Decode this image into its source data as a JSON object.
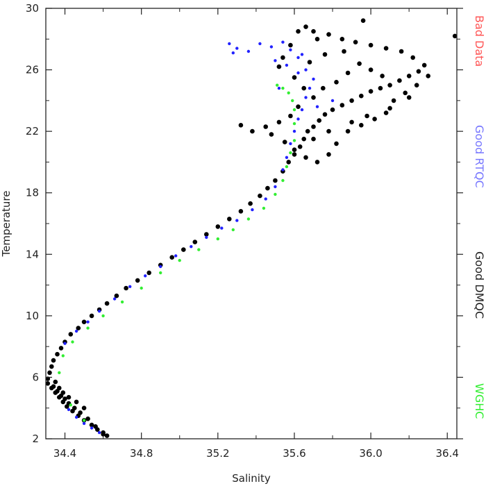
{
  "chart_data": {
    "type": "scatter",
    "xlabel": "Salinity",
    "ylabel": "Temperature",
    "xlim": [
      34.3,
      36.45
    ],
    "ylim": [
      2,
      30
    ],
    "xticks": [
      34.4,
      34.8,
      35.2,
      35.6,
      36.0,
      36.4
    ],
    "xtick_labels": [
      "34.4",
      "34.8",
      "35.2",
      "35.6",
      "36.0",
      "36.4"
    ],
    "yticks": [
      2,
      6,
      10,
      14,
      18,
      22,
      26,
      30
    ],
    "ytick_labels": [
      "2",
      "6",
      "10",
      "14",
      "18",
      "22",
      "26",
      "30"
    ],
    "grid": false,
    "legend_position": "right-vertical",
    "series": [
      {
        "name": "Good DMQC",
        "color": "#000000",
        "points": [
          [
            34.62,
            2.2
          ],
          [
            34.6,
            2.4
          ],
          [
            34.57,
            2.6
          ],
          [
            34.54,
            2.9
          ],
          [
            34.5,
            3.2
          ],
          [
            34.47,
            3.5
          ],
          [
            34.44,
            3.8
          ],
          [
            34.41,
            4.1
          ],
          [
            34.39,
            4.4
          ],
          [
            34.37,
            4.7
          ],
          [
            34.35,
            5.0
          ],
          [
            34.33,
            5.3
          ],
          [
            34.31,
            5.6
          ],
          [
            34.31,
            5.9
          ],
          [
            34.32,
            6.3
          ],
          [
            34.33,
            6.7
          ],
          [
            34.34,
            7.1
          ],
          [
            34.36,
            7.5
          ],
          [
            34.38,
            7.9
          ],
          [
            34.4,
            8.3
          ],
          [
            34.43,
            8.8
          ],
          [
            34.47,
            9.2
          ],
          [
            34.5,
            9.6
          ],
          [
            34.54,
            10.0
          ],
          [
            34.58,
            10.4
          ],
          [
            34.62,
            10.8
          ],
          [
            34.67,
            11.3
          ],
          [
            34.72,
            11.8
          ],
          [
            34.78,
            12.3
          ],
          [
            34.84,
            12.8
          ],
          [
            34.9,
            13.3
          ],
          [
            34.96,
            13.8
          ],
          [
            35.02,
            14.3
          ],
          [
            35.08,
            14.8
          ],
          [
            35.14,
            15.3
          ],
          [
            35.2,
            15.8
          ],
          [
            35.26,
            16.3
          ],
          [
            35.32,
            16.8
          ],
          [
            35.37,
            17.3
          ],
          [
            35.42,
            17.8
          ],
          [
            35.46,
            18.3
          ],
          [
            35.5,
            18.8
          ],
          [
            35.54,
            19.4
          ],
          [
            35.57,
            20.0
          ],
          [
            35.6,
            20.5
          ],
          [
            35.63,
            21.0
          ],
          [
            35.65,
            21.5
          ],
          [
            35.67,
            22.0
          ],
          [
            35.7,
            22.3
          ],
          [
            35.73,
            22.7
          ],
          [
            35.76,
            23.1
          ],
          [
            35.8,
            23.4
          ],
          [
            35.85,
            23.7
          ],
          [
            35.9,
            24.0
          ],
          [
            35.95,
            24.3
          ],
          [
            36.0,
            24.6
          ],
          [
            36.05,
            24.8
          ],
          [
            36.1,
            25.0
          ],
          [
            36.15,
            25.3
          ],
          [
            36.2,
            25.6
          ],
          [
            36.25,
            25.9
          ],
          [
            36.28,
            26.3
          ],
          [
            36.22,
            26.8
          ],
          [
            36.16,
            27.2
          ],
          [
            36.08,
            27.4
          ],
          [
            36.0,
            27.6
          ],
          [
            35.92,
            27.8
          ],
          [
            35.85,
            28.0
          ],
          [
            35.78,
            28.3
          ],
          [
            35.7,
            28.5
          ],
          [
            35.66,
            28.8
          ],
          [
            35.62,
            28.5
          ],
          [
            35.58,
            27.6
          ],
          [
            35.54,
            26.8
          ],
          [
            35.52,
            26.2
          ],
          [
            35.6,
            25.5
          ],
          [
            35.65,
            24.8
          ],
          [
            35.7,
            24.2
          ],
          [
            35.62,
            23.6
          ],
          [
            35.58,
            23.0
          ],
          [
            35.52,
            22.6
          ],
          [
            35.45,
            22.3
          ],
          [
            35.38,
            22.0
          ],
          [
            35.32,
            22.4
          ],
          [
            35.48,
            21.8
          ],
          [
            35.55,
            21.3
          ],
          [
            35.6,
            20.8
          ],
          [
            35.66,
            20.3
          ],
          [
            35.72,
            20.0
          ],
          [
            35.78,
            20.5
          ],
          [
            35.82,
            21.2
          ],
          [
            35.88,
            22.0
          ],
          [
            35.95,
            22.4
          ],
          [
            36.02,
            22.8
          ],
          [
            36.08,
            23.2
          ],
          [
            36.12,
            24.0
          ],
          [
            36.18,
            24.5
          ],
          [
            36.24,
            25.0
          ],
          [
            36.3,
            25.6
          ],
          [
            36.2,
            24.2
          ],
          [
            36.1,
            23.5
          ],
          [
            35.98,
            23.0
          ],
          [
            35.9,
            22.6
          ],
          [
            35.78,
            22.0
          ],
          [
            35.7,
            21.5
          ],
          [
            35.75,
            24.8
          ],
          [
            35.82,
            25.2
          ],
          [
            35.88,
            25.8
          ],
          [
            35.94,
            26.4
          ],
          [
            36.0,
            26.0
          ],
          [
            36.06,
            25.6
          ],
          [
            35.86,
            27.2
          ],
          [
            35.76,
            27.0
          ],
          [
            35.68,
            26.5
          ],
          [
            35.72,
            28.0
          ],
          [
            35.96,
            29.2
          ],
          [
            36.44,
            28.2
          ],
          [
            34.34,
            5.4
          ],
          [
            34.36,
            5.1
          ],
          [
            34.38,
            4.8
          ],
          [
            34.4,
            4.6
          ],
          [
            34.42,
            4.3
          ],
          [
            34.45,
            4.0
          ],
          [
            34.48,
            3.7
          ],
          [
            34.52,
            3.3
          ],
          [
            34.56,
            2.8
          ],
          [
            34.6,
            2.3
          ],
          [
            34.35,
            5.7
          ],
          [
            34.37,
            5.3
          ],
          [
            34.39,
            5.0
          ],
          [
            34.42,
            4.7
          ],
          [
            34.46,
            4.4
          ],
          [
            34.5,
            4.0
          ]
        ]
      },
      {
        "name": "Good RTQC",
        "color": "#2222ff",
        "points": [
          [
            34.58,
            2.4
          ],
          [
            34.54,
            2.7
          ],
          [
            34.5,
            3.0
          ],
          [
            34.46,
            3.4
          ],
          [
            34.42,
            3.9
          ],
          [
            34.4,
            8.2
          ],
          [
            34.46,
            9.0
          ],
          [
            34.52,
            9.6
          ],
          [
            34.58,
            10.3
          ],
          [
            34.66,
            11.1
          ],
          [
            34.74,
            11.9
          ],
          [
            34.82,
            12.6
          ],
          [
            34.9,
            13.2
          ],
          [
            34.98,
            13.9
          ],
          [
            35.06,
            14.5
          ],
          [
            35.14,
            15.1
          ],
          [
            35.22,
            15.7
          ],
          [
            35.3,
            16.2
          ],
          [
            35.38,
            16.9
          ],
          [
            35.45,
            17.6
          ],
          [
            35.5,
            18.4
          ],
          [
            35.54,
            19.5
          ],
          [
            35.56,
            20.3
          ],
          [
            35.58,
            21.2
          ],
          [
            35.6,
            22.0
          ],
          [
            35.62,
            22.8
          ],
          [
            35.64,
            23.4
          ],
          [
            35.66,
            24.2
          ],
          [
            35.68,
            24.8
          ],
          [
            35.7,
            25.4
          ],
          [
            35.66,
            26.0
          ],
          [
            35.62,
            26.8
          ],
          [
            35.58,
            27.3
          ],
          [
            35.54,
            27.8
          ],
          [
            35.48,
            27.5
          ],
          [
            35.42,
            27.7
          ],
          [
            35.36,
            27.2
          ],
          [
            35.3,
            27.4
          ],
          [
            35.26,
            27.7
          ],
          [
            35.28,
            27.1
          ],
          [
            35.5,
            26.6
          ],
          [
            35.56,
            26.3
          ],
          [
            35.62,
            25.8
          ],
          [
            35.64,
            27.0
          ],
          [
            35.52,
            24.8
          ],
          [
            35.72,
            23.6
          ],
          [
            35.8,
            24.0
          ]
        ]
      },
      {
        "name": "WGHC",
        "color": "#33ee33",
        "points": [
          [
            34.5,
            3.2
          ],
          [
            34.43,
            4.2
          ],
          [
            34.37,
            6.3
          ],
          [
            34.39,
            7.4
          ],
          [
            34.44,
            8.3
          ],
          [
            34.52,
            9.2
          ],
          [
            34.6,
            10.0
          ],
          [
            34.7,
            10.9
          ],
          [
            34.8,
            11.8
          ],
          [
            34.9,
            12.8
          ],
          [
            35.0,
            13.6
          ],
          [
            35.1,
            14.3
          ],
          [
            35.2,
            15.0
          ],
          [
            35.28,
            15.6
          ],
          [
            35.36,
            16.3
          ],
          [
            35.44,
            17.0
          ],
          [
            35.5,
            17.9
          ],
          [
            35.54,
            18.8
          ],
          [
            35.56,
            19.7
          ],
          [
            35.58,
            20.6
          ],
          [
            35.6,
            21.4
          ],
          [
            35.6,
            22.5
          ],
          [
            35.6,
            23.4
          ],
          [
            35.59,
            24.0
          ],
          [
            35.57,
            24.5
          ],
          [
            35.54,
            24.8
          ],
          [
            35.51,
            25.0
          ]
        ]
      }
    ],
    "legend": [
      {
        "label": "Bad Data",
        "color": "#ff5555"
      },
      {
        "label": "Good RTQC",
        "color": "#7777ff"
      },
      {
        "label": "Good DMQC",
        "color": "#222222"
      },
      {
        "label": "WGHC",
        "color": "#33ee33"
      }
    ]
  }
}
